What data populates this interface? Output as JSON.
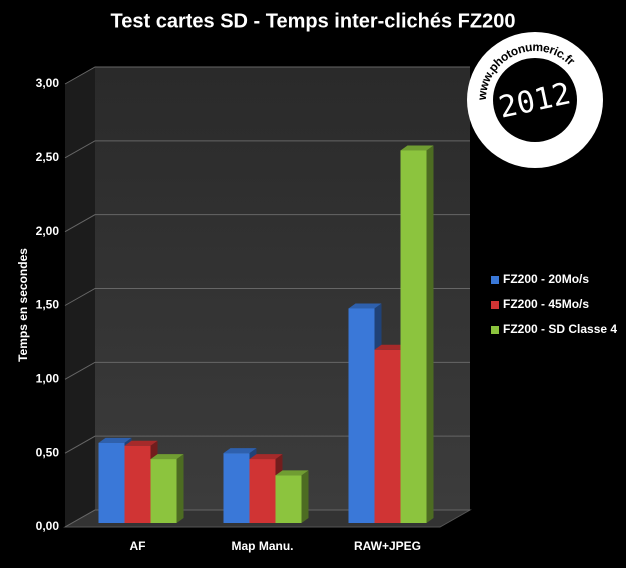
{
  "chart_data": {
    "type": "bar3d",
    "title": "Test cartes SD - Temps inter-clichés FZ200",
    "y_label": "Temps en secondes",
    "categories": [
      "AF",
      "Map Manu.",
      "RAW+JPEG"
    ],
    "series": [
      {
        "name": "FZ200 - 20Mo/s",
        "color": "#3a78d8",
        "values": [
          0.57,
          0.5,
          1.48
        ]
      },
      {
        "name": "FZ200 - 45Mo/s",
        "color": "#d03434",
        "values": [
          0.55,
          0.46,
          1.2
        ]
      },
      {
        "name": "FZ200 - SD Classe 4",
        "color": "#8cc43e",
        "values": [
          0.46,
          0.35,
          2.55
        ]
      }
    ],
    "ylim": [
      0,
      3
    ],
    "yticks": [
      {
        "value": 0,
        "label": "0,00"
      },
      {
        "value": 0.5,
        "label": "0,50"
      },
      {
        "value": 1,
        "label": "1,00"
      },
      {
        "value": 1.5,
        "label": "1,50"
      },
      {
        "value": 2,
        "label": "2,00"
      },
      {
        "value": 2.5,
        "label": "2,50"
      },
      {
        "value": 3,
        "label": "3,00"
      }
    ],
    "grid": true,
    "legend": "right",
    "annotations": [
      "2012",
      "www.photonumeric.fr"
    ]
  }
}
